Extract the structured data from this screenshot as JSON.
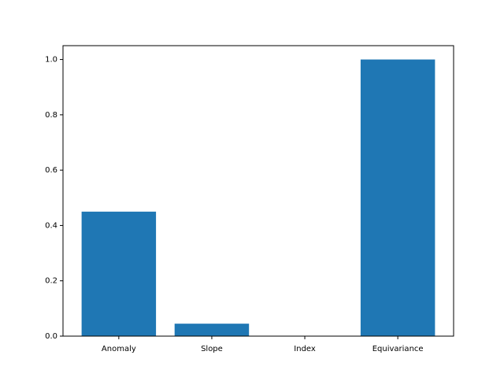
{
  "chart_data": {
    "type": "bar",
    "categories": [
      "Anomaly",
      "Slope",
      "Index",
      "Equivariance"
    ],
    "values": [
      0.45,
      0.045,
      0.0,
      1.0
    ],
    "ylim": [
      0,
      1.05
    ],
    "yticks": [
      0.0,
      0.2,
      0.4,
      0.6,
      0.8,
      1.0
    ],
    "ytick_labels": [
      "0.0",
      "0.2",
      "0.4",
      "0.6",
      "0.8",
      "1.0"
    ],
    "title": "",
    "xlabel": "",
    "ylabel": "",
    "bar_color": "#1f77b4",
    "grid": false,
    "legend": "none"
  }
}
